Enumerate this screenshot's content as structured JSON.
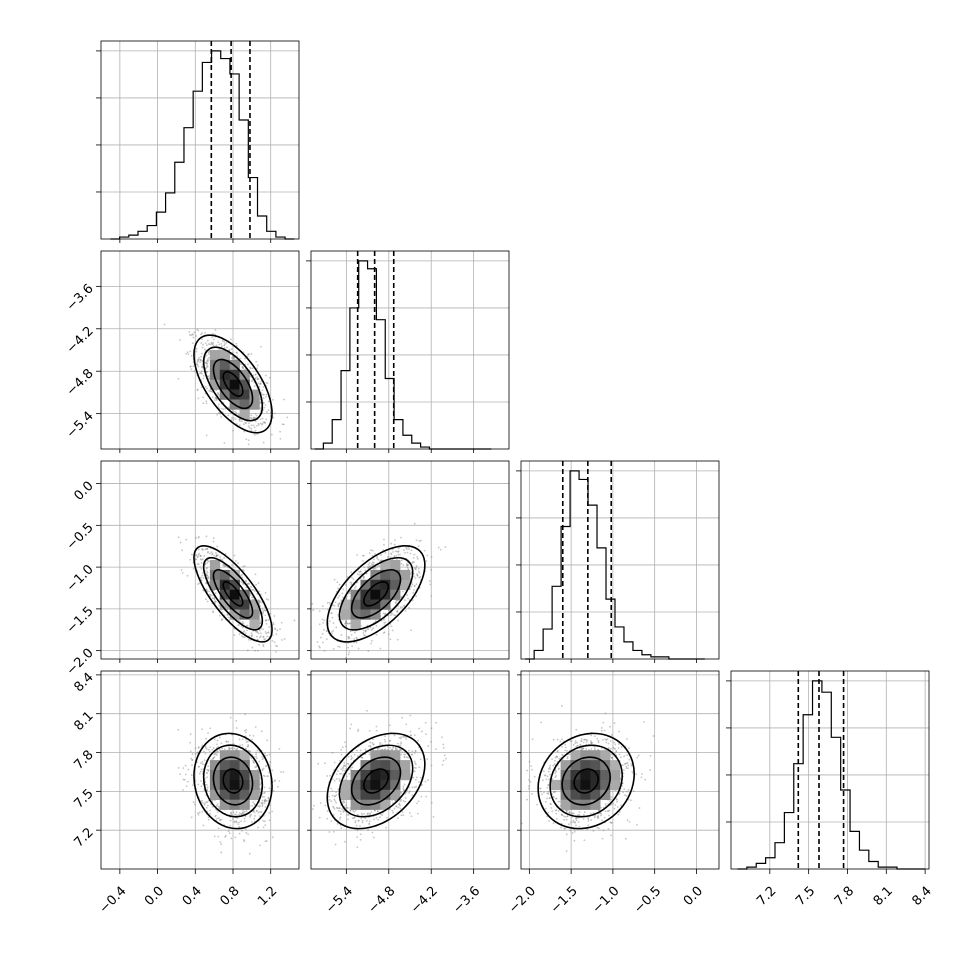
{
  "chart_data": {
    "type": "corner",
    "title": "",
    "parameters": [
      {
        "label": "",
        "range": [
          -0.6,
          1.5
        ],
        "ticks": [
          "−0.4",
          "0.0",
          "0.4",
          "0.8",
          "1.2"
        ],
        "tick_values": [
          -0.4,
          0.0,
          0.4,
          0.8,
          1.2
        ],
        "quantiles": [
          0.57,
          0.78,
          0.98
        ]
      },
      {
        "label": "",
        "range": [
          -5.9,
          -3.1
        ],
        "ticks": [
          "−5.4",
          "−4.8",
          "−4.2",
          "−3.6"
        ],
        "tick_values": [
          -5.4,
          -4.8,
          -4.2,
          -3.6
        ],
        "quantiles": [
          -5.24,
          -5.0,
          -4.73
        ]
      },
      {
        "label": "",
        "range": [
          -2.1,
          0.27
        ],
        "ticks": [
          "−2.0",
          "−1.5",
          "−1.0",
          "−0.5",
          "0.0"
        ],
        "tick_values": [
          -2.0,
          -1.5,
          -1.0,
          -0.5,
          0.0
        ],
        "quantiles": [
          -1.6,
          -1.3,
          -1.02
        ]
      },
      {
        "label": "",
        "range": [
          6.9,
          8.43
        ],
        "ticks": [
          "7.2",
          "7.5",
          "7.8",
          "8.1",
          "8.4"
        ],
        "tick_values": [
          7.2,
          7.5,
          7.8,
          8.1,
          8.4
        ],
        "quantiles": [
          7.42,
          7.58,
          7.77
        ]
      }
    ],
    "histograms": [
      {
        "param": 0,
        "bins": [
          -0.5,
          1.45
        ],
        "counts": [
          0,
          1,
          2,
          4,
          7,
          14,
          24,
          40,
          58,
          77,
          92,
          98,
          94,
          86,
          62,
          32,
          12,
          4,
          1,
          0
        ]
      },
      {
        "param": 1,
        "bins": [
          -5.85,
          -3.35
        ],
        "counts": [
          0,
          3,
          15,
          40,
          72,
          96,
          92,
          66,
          36,
          15,
          7,
          3,
          1,
          0,
          0,
          0,
          0,
          0,
          0,
          0
        ]
      },
      {
        "param": 2,
        "bins": [
          -2.05,
          0.1
        ],
        "counts": [
          0,
          4,
          14,
          34,
          62,
          88,
          84,
          72,
          52,
          28,
          15,
          8,
          4,
          2,
          1,
          1,
          0,
          0,
          0,
          0
        ]
      },
      {
        "param": 3,
        "bins": [
          6.95,
          8.4
        ],
        "counts": [
          0,
          1,
          3,
          6,
          14,
          30,
          56,
          82,
          100,
          94,
          70,
          42,
          20,
          10,
          4,
          1,
          1,
          0,
          0,
          0
        ]
      }
    ],
    "pairs": [
      {
        "x_param": 0,
        "y_param": 1,
        "mean": [
          0.8,
          -4.98
        ],
        "std": [
          0.18,
          0.3
        ],
        "rho": -0.6
      },
      {
        "x_param": 0,
        "y_param": 2,
        "mean": [
          0.8,
          -1.32
        ],
        "std": [
          0.18,
          0.25
        ],
        "rho": -0.75
      },
      {
        "x_param": 1,
        "y_param": 2,
        "mean": [
          -4.98,
          -1.32
        ],
        "std": [
          0.3,
          0.25
        ],
        "rho": 0.6
      },
      {
        "x_param": 0,
        "y_param": 3,
        "mean": [
          0.8,
          7.58
        ],
        "std": [
          0.18,
          0.16
        ],
        "rho": -0.1
      },
      {
        "x_param": 1,
        "y_param": 3,
        "mean": [
          -4.98,
          7.58
        ],
        "std": [
          0.3,
          0.16
        ],
        "rho": 0.35
      },
      {
        "x_param": 2,
        "y_param": 3,
        "mean": [
          -1.32,
          7.58
        ],
        "std": [
          0.25,
          0.16
        ],
        "rho": 0.15
      }
    ],
    "contour_levels_sigma": [
      0.5,
      1.0,
      1.5,
      2.0
    ],
    "grid": true,
    "colors": {
      "line": "#000000",
      "points": "#808080",
      "grid": "#b0b0b0"
    }
  }
}
